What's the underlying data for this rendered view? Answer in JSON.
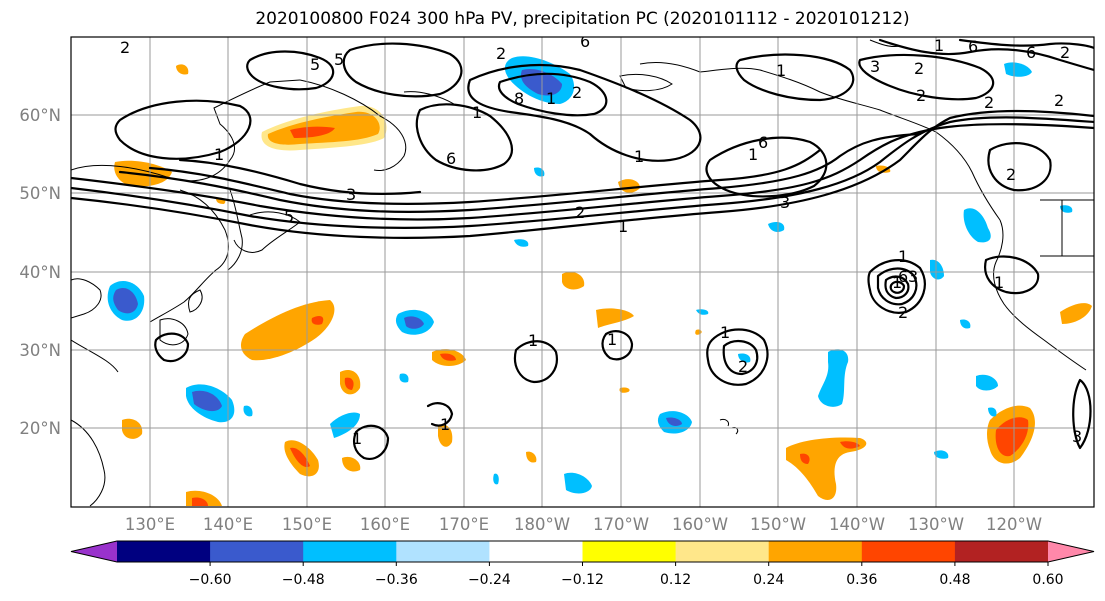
{
  "title": "2020100800 F024 300 hPa PV, precipitation PC (2020101112 - 2020101212)",
  "map": {
    "lat_labels": [
      "60°N",
      "50°N",
      "40°N",
      "30°N",
      "20°N"
    ],
    "lon_labels": [
      "130°E",
      "140°E",
      "150°E",
      "160°E",
      "170°E",
      "180°W",
      "170°W",
      "160°W",
      "150°W",
      "140°W",
      "130°W",
      "120°W"
    ],
    "contour_labels": [
      "2",
      "5",
      "5",
      "2",
      "6",
      "2",
      "8",
      "1",
      "1",
      "6",
      "2",
      "3",
      "1",
      "3",
      "5",
      "1",
      "6",
      "2",
      "1",
      "6",
      "1",
      "3",
      "2",
      "1",
      "1",
      "2",
      "1",
      "6",
      "1",
      "3",
      "2",
      "2",
      "2",
      "6",
      "2",
      "1",
      "1",
      "1",
      "2",
      "1",
      "3",
      "1",
      "1"
    ]
  },
  "colorbar": {
    "colors": [
      "#9932cc",
      "#000080",
      "#3a5acd",
      "#00bfff",
      "#b0e2ff",
      "#ffffff",
      "#ffff00",
      "#ffe78a",
      "#ffa500",
      "#ff4500",
      "#b22222",
      "#ff88aa"
    ],
    "tick_labels": [
      "-0.60",
      "-0.48",
      "-0.36",
      "-0.24",
      "-0.12",
      "0.12",
      "0.24",
      "0.36",
      "0.48",
      "0.60"
    ]
  }
}
